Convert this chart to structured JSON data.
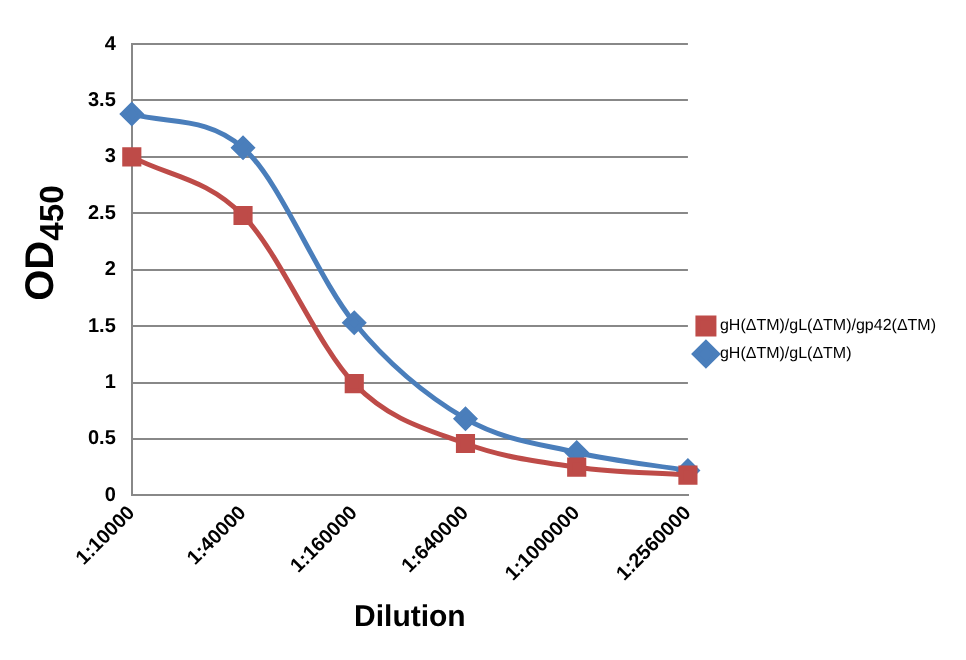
{
  "chart_data": {
    "type": "line",
    "xlabel": "Dilution",
    "ylabel": "OD$_{450}$",
    "categories": [
      "1:10000",
      "1:40000",
      "1:160000",
      "1:640000",
      "1:1000000",
      "1:2560000"
    ],
    "series": [
      {
        "name": "gH(ΔTM)/gL(ΔTM)",
        "color": "#4a7ebb",
        "marker": "diamond",
        "values": [
          3.38,
          3.08,
          1.53,
          0.68,
          0.38,
          0.22
        ]
      },
      {
        "name": "gH(ΔTM)/gL(ΔTM)/gp42(ΔTM)",
        "color": "#be4b48",
        "marker": "square",
        "values": [
          3.0,
          2.48,
          0.99,
          0.46,
          0.25,
          0.18
        ]
      }
    ],
    "ylim": [
      0,
      4
    ],
    "yticks": [
      0,
      0.5,
      1,
      1.5,
      2,
      2.5,
      3,
      3.5,
      4
    ],
    "grid": "y",
    "legend": "right",
    "line_style": "solid"
  }
}
